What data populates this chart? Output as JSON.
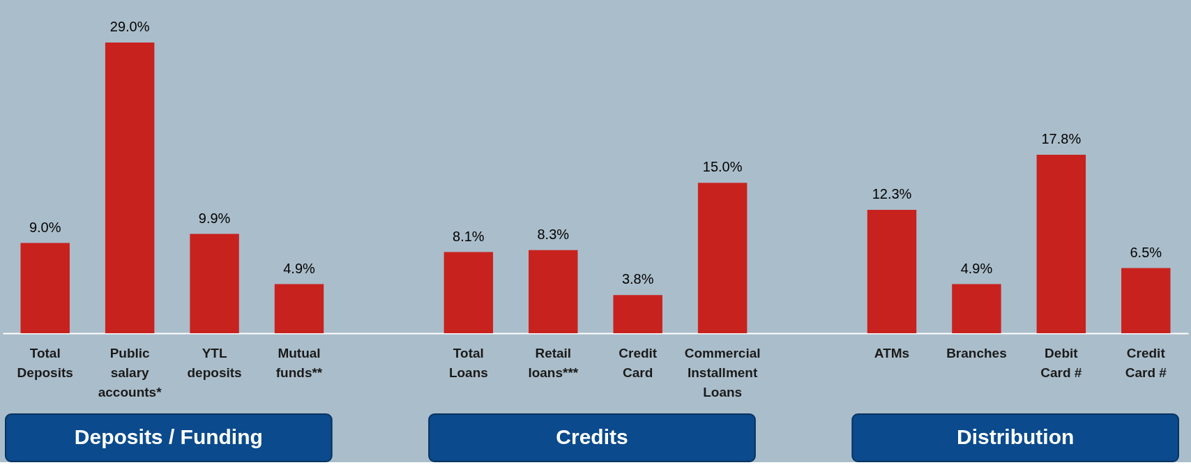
{
  "chart_data": {
    "type": "bar",
    "categories": [
      "Total Deposits",
      "Public salary accounts*",
      "YTL deposits",
      "Mutual funds**",
      null,
      "Total Loans",
      "Retail loans***",
      "Credit Card",
      "Commercial Installment Loans",
      null,
      "ATMs",
      "Branches",
      "Debit Card #",
      "Credit Card #"
    ],
    "values": [
      9.0,
      29.0,
      9.9,
      4.9,
      null,
      8.1,
      8.3,
      3.8,
      15.0,
      null,
      12.3,
      4.9,
      17.8,
      6.5
    ],
    "value_labels": [
      "9.0%",
      "29.0%",
      "9.9%",
      "4.9%",
      null,
      "8.1%",
      "8.3%",
      "3.8%",
      "15.0%",
      null,
      "12.3%",
      "4.9%",
      "17.8%",
      "6.5%"
    ],
    "color": "#c8221f",
    "annotations": [
      "Deposits / Funding",
      "Credits",
      "Distribution"
    ],
    "grid": false
  }
}
